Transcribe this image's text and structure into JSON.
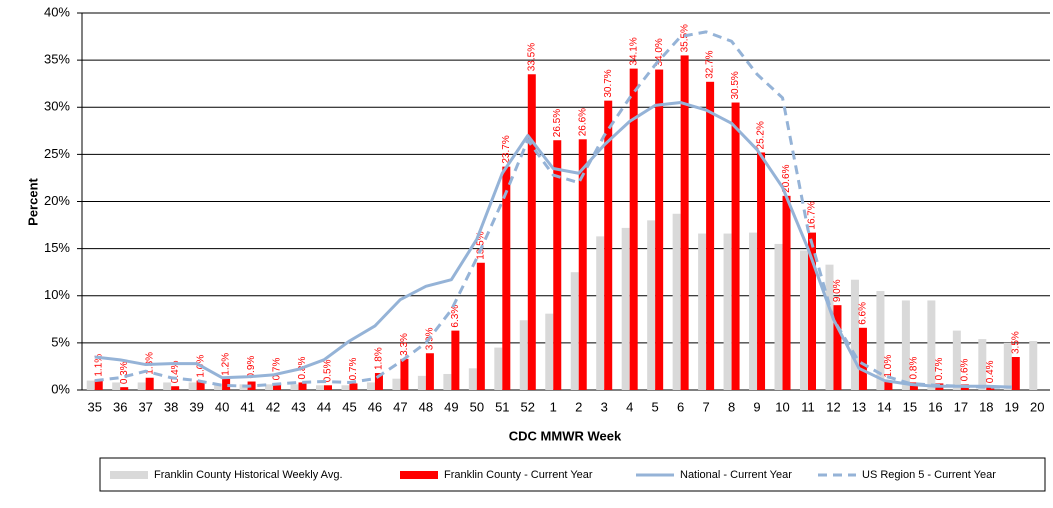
{
  "chart_data": {
    "type": "bar",
    "x_label": "CDC MMWR Week",
    "y_label": "Percent",
    "categories": [
      "35",
      "36",
      "37",
      "38",
      "39",
      "40",
      "41",
      "42",
      "43",
      "44",
      "45",
      "46",
      "47",
      "48",
      "49",
      "50",
      "51",
      "52",
      "1",
      "2",
      "3",
      "4",
      "5",
      "6",
      "7",
      "8",
      "9",
      "10",
      "11",
      "12",
      "13",
      "14",
      "15",
      "16",
      "17",
      "18",
      "19",
      "20"
    ],
    "series": [
      {
        "name": "Franklin County Historical Weekly Avg.",
        "type": "bar",
        "color": "#d9d9d9",
        "values": [
          1.0,
          0.8,
          0.8,
          0.8,
          0.8,
          0.6,
          0.6,
          0.6,
          0.6,
          0.5,
          0.5,
          0.8,
          1.2,
          1.5,
          1.7,
          2.3,
          4.5,
          7.4,
          8.1,
          12.5,
          16.3,
          17.2,
          18.0,
          18.7,
          16.6,
          16.6,
          16.7,
          15.5,
          14.8,
          13.3,
          11.7,
          10.5,
          9.5,
          9.5,
          6.3,
          5.4,
          5.0,
          5.2
        ]
      },
      {
        "name": "Franklin County - Current Year",
        "type": "bar",
        "color": "#ff0000",
        "values": [
          1.1,
          0.3,
          1.3,
          0.4,
          1.0,
          1.2,
          0.9,
          0.7,
          0.8,
          0.5,
          0.7,
          1.8,
          3.3,
          3.9,
          6.3,
          13.5,
          23.7,
          33.5,
          26.5,
          26.6,
          30.7,
          34.1,
          34.0,
          35.5,
          32.7,
          30.5,
          25.2,
          20.6,
          16.7,
          9.0,
          6.6,
          1.0,
          0.8,
          0.7,
          0.6,
          0.4,
          3.5,
          null
        ],
        "value_labels": [
          "1.1%",
          "0.3%",
          "1.3%",
          "0.4%",
          "1.0%",
          "1.2%",
          "0.9%",
          "0.7%",
          "0.8%",
          "0.5%",
          "0.7%",
          "1.8%",
          "3.3%",
          "3.9%",
          "6.3%",
          "13.5%",
          "23.7%",
          "33.5%",
          "26.5%",
          "26.6%",
          "30.7%",
          "34.1%",
          "34.0%",
          "35.5%",
          "32.7%",
          "30.5%",
          "25.2%",
          "20.6%",
          "16.7%",
          "9.0%",
          "6.6%",
          "1.0%",
          "0.8%",
          "0.7%",
          "0.6%",
          "0.4%",
          "3.5%",
          null
        ]
      },
      {
        "name": "National - Current Year",
        "type": "line",
        "color": "#95b3d7",
        "dashed": false,
        "values": [
          3.5,
          3.2,
          2.7,
          2.8,
          2.8,
          1.3,
          1.4,
          1.6,
          2.2,
          3.2,
          5.2,
          6.8,
          9.6,
          11.0,
          11.7,
          16.0,
          23.0,
          27.0,
          23.5,
          23.0,
          26.0,
          28.5,
          30.2,
          30.5,
          29.7,
          28.3,
          25.5,
          21.5,
          15.0,
          7.5,
          2.3,
          1.0,
          0.6,
          0.4,
          0.4,
          0.4,
          0.3,
          null
        ]
      },
      {
        "name": "US Region 5 - Current Year",
        "type": "line",
        "color": "#95b3d7",
        "dashed": true,
        "values": [
          1.0,
          1.3,
          2.0,
          1.3,
          1.0,
          0.5,
          0.4,
          0.6,
          0.8,
          0.9,
          0.8,
          1.2,
          3.0,
          5.0,
          8.5,
          14.0,
          20.0,
          26.5,
          22.8,
          22.0,
          27.0,
          31.0,
          34.5,
          37.5,
          38.0,
          37.0,
          33.5,
          31.0,
          17.0,
          7.5,
          3.0,
          1.5,
          0.7,
          0.5,
          0.4,
          0.3,
          0.3,
          null
        ]
      }
    ],
    "ylim": [
      0,
      40
    ],
    "yticks": [
      {
        "value": 0,
        "label": "0%"
      },
      {
        "value": 5,
        "label": "5%"
      },
      {
        "value": 10,
        "label": "10%"
      },
      {
        "value": 15,
        "label": "15%"
      },
      {
        "value": 20,
        "label": "20%"
      },
      {
        "value": 25,
        "label": "25%"
      },
      {
        "value": 30,
        "label": "30%"
      },
      {
        "value": 35,
        "label": "35%"
      },
      {
        "value": 40,
        "label": "40%"
      }
    ],
    "grid": true,
    "legend": "bottom"
  }
}
